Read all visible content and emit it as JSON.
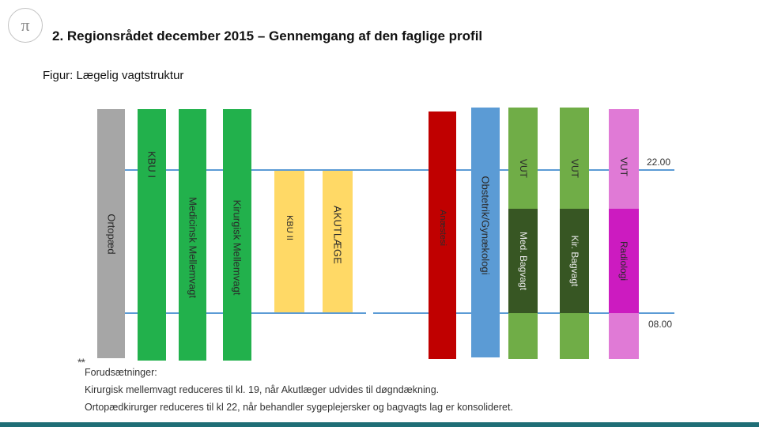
{
  "header": {
    "logo_glyph": "π",
    "title": "2. Regionsrådet december 2015 – Gennemgang af den faglige profil"
  },
  "caption": "Figur: Lægelig vagtstruktur",
  "time_markers": {
    "upper": "22.00",
    "lower": "08.00"
  },
  "columns": [
    {
      "label": "Ortopæd",
      "color": "#a6a6a6"
    },
    {
      "label": "KBU I",
      "color": "#22b14c"
    },
    {
      "label": "Medicinsk Mellemvagt",
      "color": "#22b14c"
    },
    {
      "label": "Kirurgisk Mellemvagt",
      "color": "#22b14c"
    },
    {
      "label": "KBU II",
      "color": "#ffd966"
    },
    {
      "label": "AKUTLÆGE",
      "color": "#ffd966"
    },
    {
      "label": "Anæstesi",
      "color": "#c00000"
    },
    {
      "label": "Obstetrik/Gynækologi",
      "color": "#5b9bd5"
    },
    {
      "label_top": "VUT",
      "label_mid": "Med. Bagvagt",
      "color_light": "#70ad47",
      "color_dark": "#375623"
    },
    {
      "label_top": "VUT",
      "label_mid": "Kir. Bagvagt",
      "color_light": "#70ad47",
      "color_dark": "#375623"
    },
    {
      "label_top": "VUT",
      "label_mid": "Radiologi",
      "color_light": "#e07ad6",
      "color_dark": "#cc1bc0"
    }
  ],
  "notes": {
    "marker": "**",
    "heading": "Forudsætninger:",
    "lines": [
      "Kirurgisk mellemvagt reduceres til kl. 19, når Akutlæger udvides til døgndækning.",
      "Ortopædkirurger reduceres til kl 22, når behandler sygeplejersker og bagvagts lag er konsolideret."
    ]
  },
  "accent_color": "#1f6e76"
}
